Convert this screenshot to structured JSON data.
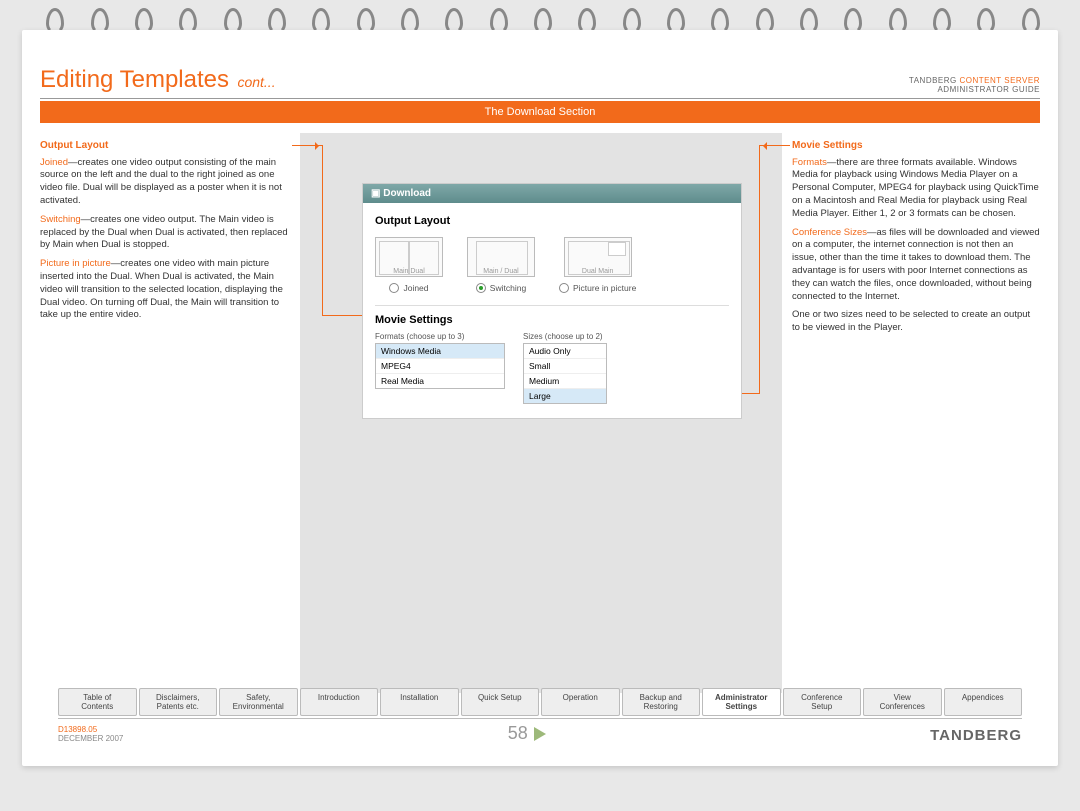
{
  "header": {
    "title_main": "Editing Templates",
    "title_cont": "cont...",
    "doc_brand_prefix": "TANDBERG",
    "doc_brand_suffix": "CONTENT SERVER",
    "doc_subtitle": "ADMINISTRATOR GUIDE"
  },
  "section_bar": "The Download Section",
  "left_col": {
    "heading": "Output Layout",
    "paras": [
      {
        "term": "Joined",
        "text": "—creates one video output consisting of the main source on the left and the dual to the right joined as one video file. Dual will be displayed as a poster when it is not activated."
      },
      {
        "term": "Switching",
        "text": "—creates one video output. The Main video is replaced by the Dual when Dual is activated, then replaced by Main when Dual is stopped."
      },
      {
        "term": "Picture in picture",
        "text": "—creates one video with main picture inserted into the Dual. When Dual is activated, the Main video will transition to the selected location, displaying the Dual video. On turning off Dual, the Main will transition to take up the entire video."
      }
    ]
  },
  "right_col": {
    "heading": "Movie Settings",
    "paras": [
      {
        "term": "Formats",
        "text": "—there are three formats available. Windows Media for playback using Windows Media Player on a Personal Computer, MPEG4 for playback using QuickTime on a Macintosh and Real Media for playback using Real Media Player. Either 1, 2 or 3 formats can be chosen."
      },
      {
        "term": "Conference Sizes",
        "text": "—as files will be downloaded and viewed on a computer, the internet connection is not then an issue, other than the time it takes to download them. The advantage is for users with poor Internet connections as they can watch the files, once downloaded, without being connected to the Internet."
      },
      {
        "term": "",
        "text": "One or two sizes need to be selected to create an output to be viewed in the Player."
      }
    ]
  },
  "mock": {
    "panel_title": "Download",
    "h1": "Output Layout",
    "layouts": [
      {
        "caption": "Main        Dual",
        "label": "Joined",
        "selected": false,
        "thumb": "joined"
      },
      {
        "caption": "Main / Dual",
        "label": "Switching",
        "selected": true,
        "thumb": "switch"
      },
      {
        "caption": "Dual   Main",
        "label": "Picture in picture",
        "selected": false,
        "thumb": "pip"
      }
    ],
    "h2": "Movie Settings",
    "formats_label": "Formats (choose up to 3)",
    "formats": [
      {
        "name": "Windows Media",
        "selected": true
      },
      {
        "name": "MPEG4",
        "selected": false
      },
      {
        "name": "Real Media",
        "selected": false
      }
    ],
    "sizes_label": "Sizes (choose up to 2)",
    "sizes": [
      {
        "name": "Audio Only",
        "selected": false
      },
      {
        "name": "Small",
        "selected": false
      },
      {
        "name": "Medium",
        "selected": false
      },
      {
        "name": "Large",
        "selected": true
      }
    ]
  },
  "tabs": [
    {
      "line1": "Table of",
      "line2": "Contents",
      "active": false
    },
    {
      "line1": "Disclaimers,",
      "line2": "Patents etc.",
      "active": false
    },
    {
      "line1": "Safety,",
      "line2": "Environmental",
      "active": false
    },
    {
      "line1": "Introduction",
      "line2": "",
      "active": false
    },
    {
      "line1": "Installation",
      "line2": "",
      "active": false
    },
    {
      "line1": "Quick Setup",
      "line2": "",
      "active": false
    },
    {
      "line1": "Operation",
      "line2": "",
      "active": false
    },
    {
      "line1": "Backup and",
      "line2": "Restoring",
      "active": false
    },
    {
      "line1": "Administrator",
      "line2": "Settings",
      "active": true
    },
    {
      "line1": "Conference",
      "line2": "Setup",
      "active": false
    },
    {
      "line1": "View",
      "line2": "Conferences",
      "active": false
    },
    {
      "line1": "Appendices",
      "line2": "",
      "active": false
    }
  ],
  "footer": {
    "doc_num": "D13898.05",
    "date": "DECEMBER 2007",
    "page": "58",
    "brand": "TANDBERG"
  },
  "colors": {
    "accent": "#f26a1b",
    "panel_header": "#5e8c8c",
    "page_arrow": "#9db97a"
  }
}
